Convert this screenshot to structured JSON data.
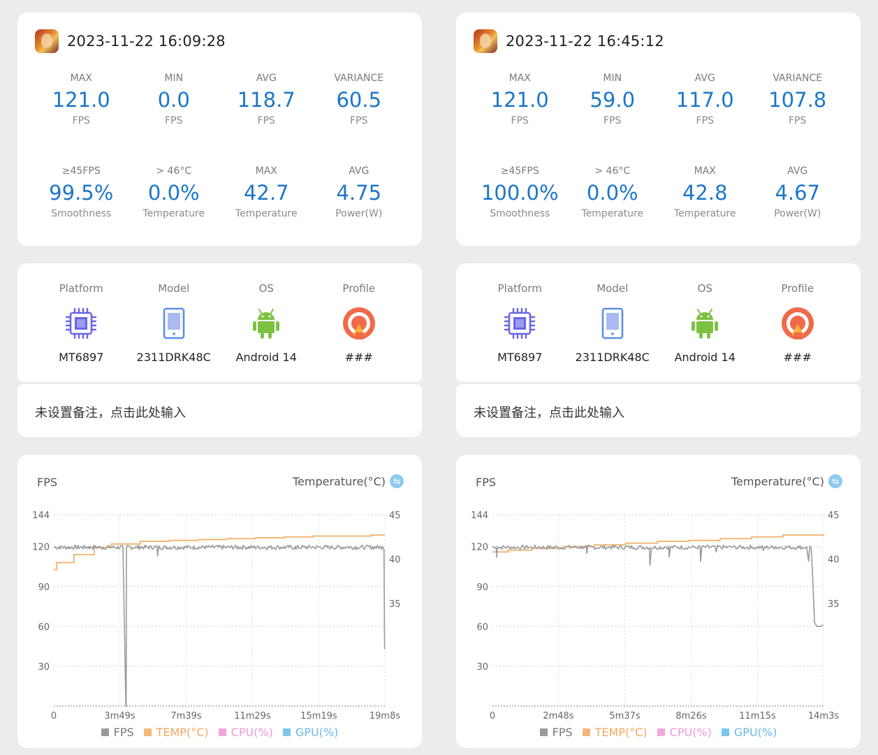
{
  "colors": {
    "accent": "#1c76c8",
    "fps": "#9a9a9a",
    "temp": "#f2b87a",
    "cpu": "#f2a6dc",
    "gpu": "#7cc6ee"
  },
  "sessions": [
    {
      "timestamp": "2023-11-22 16:09:28",
      "stats_row1": [
        {
          "label": "MAX",
          "value": "121.0",
          "unit": "FPS"
        },
        {
          "label": "MIN",
          "value": "0.0",
          "unit": "FPS"
        },
        {
          "label": "AVG",
          "value": "118.7",
          "unit": "FPS"
        },
        {
          "label": "VARIANCE",
          "value": "60.5",
          "unit": "FPS"
        }
      ],
      "stats_row2": [
        {
          "label": "≥45FPS",
          "value": "99.5%",
          "unit": "Smoothness"
        },
        {
          "label": "> 46°C",
          "value": "0.0%",
          "unit": "Temperature"
        },
        {
          "label": "MAX",
          "value": "42.7",
          "unit": "Temperature"
        },
        {
          "label": "AVG",
          "value": "4.75",
          "unit": "Power(W)"
        }
      ],
      "device": {
        "platform_label": "Platform",
        "platform": "MT6897",
        "model_label": "Model",
        "model": "2311DRK48C",
        "os_label": "OS",
        "os": "Android 14",
        "profile_label": "Profile",
        "profile": "###"
      },
      "note": "未设置备注，点击此处输入",
      "chart_titles": {
        "left": "FPS",
        "right": "Temperature(°C)"
      },
      "legend": [
        "FPS",
        "TEMP(°C)",
        "CPU(%)",
        "GPU(%)"
      ]
    },
    {
      "timestamp": "2023-11-22 16:45:12",
      "stats_row1": [
        {
          "label": "MAX",
          "value": "121.0",
          "unit": "FPS"
        },
        {
          "label": "MIN",
          "value": "59.0",
          "unit": "FPS"
        },
        {
          "label": "AVG",
          "value": "117.0",
          "unit": "FPS"
        },
        {
          "label": "VARIANCE",
          "value": "107.8",
          "unit": "FPS"
        }
      ],
      "stats_row2": [
        {
          "label": "≥45FPS",
          "value": "100.0%",
          "unit": "Smoothness"
        },
        {
          "label": "> 46°C",
          "value": "0.0%",
          "unit": "Temperature"
        },
        {
          "label": "MAX",
          "value": "42.8",
          "unit": "Temperature"
        },
        {
          "label": "AVG",
          "value": "4.67",
          "unit": "Power(W)"
        }
      ],
      "device": {
        "platform_label": "Platform",
        "platform": "MT6897",
        "model_label": "Model",
        "model": "2311DRK48C",
        "os_label": "OS",
        "os": "Android 14",
        "profile_label": "Profile",
        "profile": "###"
      },
      "note": "未设置备注，点击此处输入",
      "chart_titles": {
        "left": "FPS",
        "right": "Temperature(°C)"
      },
      "legend": [
        "FPS",
        "TEMP(°C)",
        "CPU(%)",
        "GPU(%)"
      ]
    }
  ],
  "chart_data": [
    {
      "type": "line",
      "title": "FPS",
      "y2label": "Temperature(°C)",
      "duration_s": 1148,
      "x_tick_labels": [
        "0",
        "3m49s",
        "7m39s",
        "11m29s",
        "15m19s",
        "19m8s"
      ],
      "x_tick_values": [
        0,
        229,
        459,
        689,
        919,
        1148
      ],
      "y_ticks": [
        30,
        60,
        90,
        120,
        144
      ],
      "ylim": [
        0,
        144
      ],
      "y2_ticks": [
        35,
        40,
        45
      ],
      "y2lim": [
        23.4,
        45
      ],
      "series": [
        {
          "name": "FPS",
          "axis": "left",
          "base": 119.5,
          "x": [
            0,
            60,
            120,
            180,
            240,
            250,
            251,
            252,
            300,
            340,
            360,
            420,
            480,
            540,
            600,
            660,
            720,
            780,
            840,
            900,
            960,
            1020,
            1080,
            1140,
            1145,
            1147,
            1148
          ],
          "values": [
            120,
            119,
            120,
            118,
            119,
            0,
            0,
            119,
            120,
            119,
            113,
            120,
            119,
            120,
            119,
            120,
            119,
            120,
            118,
            120,
            119,
            120,
            119,
            120,
            118,
            43,
            43
          ]
        },
        {
          "name": "TEMP(°C)",
          "axis": "right",
          "x": [
            0,
            10,
            70,
            140,
            200,
            300,
            400,
            500,
            600,
            700,
            800,
            900,
            1000,
            1100,
            1148
          ],
          "values": [
            38.8,
            39.6,
            40.5,
            41.3,
            41.7,
            42.0,
            42.1,
            42.2,
            42.3,
            42.4,
            42.5,
            42.6,
            42.6,
            42.7,
            42.7
          ]
        },
        {
          "name": "CPU(%)",
          "axis": "right",
          "x": [],
          "values": []
        },
        {
          "name": "GPU(%)",
          "axis": "right",
          "x": [],
          "values": []
        }
      ]
    },
    {
      "type": "line",
      "title": "FPS",
      "y2label": "Temperature(°C)",
      "duration_s": 843,
      "x_tick_labels": [
        "0",
        "2m48s",
        "5m37s",
        "8m26s",
        "11m15s",
        "14m3s"
      ],
      "x_tick_values": [
        0,
        168,
        337,
        506,
        675,
        843
      ],
      "y_ticks": [
        30,
        60,
        90,
        120,
        144
      ],
      "ylim": [
        0,
        144
      ],
      "y2_ticks": [
        35,
        40,
        45
      ],
      "y2lim": [
        23.4,
        45
      ],
      "series": [
        {
          "name": "FPS",
          "axis": "left",
          "base": 119.5,
          "x": [
            0,
            10,
            11,
            12,
            60,
            120,
            180,
            230,
            240,
            300,
            360,
            400,
            401,
            405,
            440,
            450,
            460,
            520,
            530,
            540,
            570,
            600,
            660,
            690,
            720,
            780,
            800,
            805,
            812,
            815,
            820,
            826,
            835,
            843
          ],
          "values": [
            120,
            118,
            112,
            120,
            119,
            120,
            119,
            120,
            115,
            120,
            119,
            119,
            106,
            119,
            120,
            112,
            120,
            119,
            109,
            120,
            116,
            120,
            119,
            117,
            120,
            119,
            120,
            109,
            117,
            100,
            63,
            60,
            60,
            61
          ]
        },
        {
          "name": "TEMP(°C)",
          "axis": "right",
          "x": [
            0,
            40,
            100,
            180,
            260,
            340,
            420,
            500,
            580,
            660,
            740,
            843
          ],
          "values": [
            40.8,
            41.0,
            41.2,
            41.4,
            41.6,
            41.8,
            42.0,
            42.1,
            42.3,
            42.5,
            42.7,
            42.8
          ]
        },
        {
          "name": "CPU(%)",
          "axis": "right",
          "x": [],
          "values": []
        },
        {
          "name": "GPU(%)",
          "axis": "right",
          "x": [],
          "values": []
        }
      ]
    }
  ]
}
